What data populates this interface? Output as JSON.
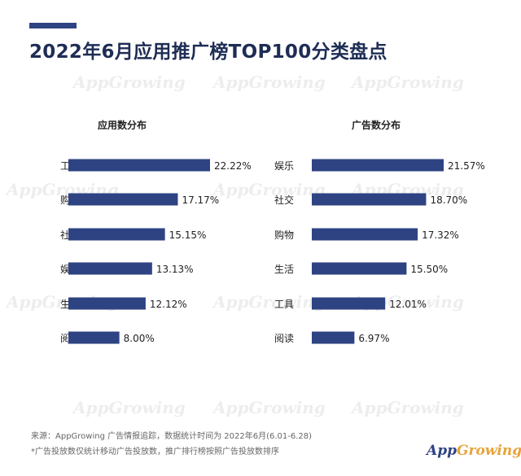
{
  "header": {
    "title": "2022年6月应用推广榜TOP100分类盘点"
  },
  "chart_data": [
    {
      "type": "bar",
      "orientation": "horizontal",
      "title": "应用数分布",
      "categories": [
        "工具",
        "购物",
        "社交",
        "娱乐",
        "生活",
        "阅读"
      ],
      "values": [
        22.22,
        17.17,
        15.15,
        13.13,
        12.12,
        8.0
      ],
      "labels": [
        "22.22%",
        "17.17%",
        "15.15%",
        "13.13%",
        "12.12%",
        "8.00%"
      ],
      "unit": "%",
      "xlim": [
        0,
        22.22
      ],
      "grid": false,
      "bar_color": "#2e4382"
    },
    {
      "type": "bar",
      "orientation": "horizontal",
      "title": "广告数分布",
      "categories": [
        "娱乐",
        "社交",
        "购物",
        "生活",
        "工具",
        "阅读"
      ],
      "values": [
        21.57,
        18.7,
        17.32,
        15.5,
        12.01,
        6.97
      ],
      "labels": [
        "21.57%",
        "18.70%",
        "17.32%",
        "15.50%",
        "12.01%",
        "6.97%"
      ],
      "unit": "%",
      "xlim": [
        0,
        21.57
      ],
      "grid": false,
      "bar_color": "#2e4382"
    }
  ],
  "footer": {
    "source": "来源：AppGrowing 广告情报追踪，数据统计时间为 2022年6月(6.01-6.28)",
    "note": "*广告投放数仅统计移动广告投放数，推广排行榜按照广告投放数排序"
  },
  "brand": {
    "logo_part1": "App",
    "logo_part2": "Growing",
    "watermark": "AppGrowing"
  },
  "colors": {
    "bar": "#2e4382",
    "title": "#1f2d55",
    "watermark": "#ededed"
  }
}
